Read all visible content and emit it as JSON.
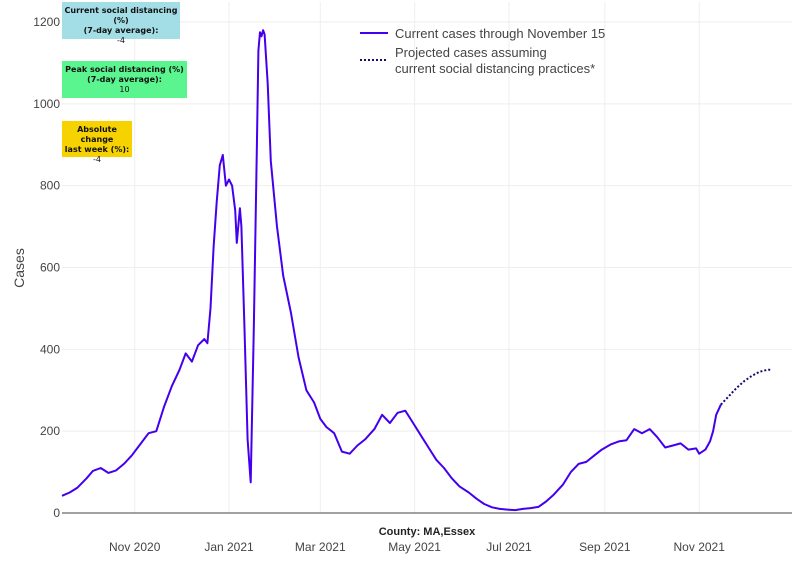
{
  "chart_data": {
    "type": "line",
    "ylabel": "Cases",
    "xlabel_caption": "County: MA,Essex",
    "ylim": [
      0,
      1200
    ],
    "yticks": [
      0,
      200,
      400,
      600,
      800,
      1000,
      1200
    ],
    "y_tick_labels": [
      "0",
      "200",
      "400",
      "600",
      "800",
      "1000",
      "1200"
    ],
    "x_range": [
      "2020-09-15",
      "2021-12-31"
    ],
    "x_ticks": [
      "2020-11-01",
      "2021-01-01",
      "2021-03-01",
      "2021-05-01",
      "2021-07-01",
      "2021-09-01",
      "2021-11-01"
    ],
    "x_tick_labels": [
      "Nov 2020",
      "Jan 2021",
      "Mar 2021",
      "May 2021",
      "Jul 2021",
      "Sep 2021",
      "Nov 2021"
    ],
    "series": [
      {
        "name": "Current cases through November 15",
        "style": "solid",
        "color": "#4400ee",
        "points": [
          [
            "2020-09-15",
            42
          ],
          [
            "2020-09-20",
            50
          ],
          [
            "2020-09-25",
            62
          ],
          [
            "2020-10-01",
            85
          ],
          [
            "2020-10-05",
            103
          ],
          [
            "2020-10-10",
            110
          ],
          [
            "2020-10-15",
            98
          ],
          [
            "2020-10-20",
            104
          ],
          [
            "2020-10-25",
            120
          ],
          [
            "2020-10-30",
            140
          ],
          [
            "2020-11-05",
            170
          ],
          [
            "2020-11-10",
            195
          ],
          [
            "2020-11-15",
            200
          ],
          [
            "2020-11-20",
            260
          ],
          [
            "2020-11-25",
            310
          ],
          [
            "2020-11-30",
            350
          ],
          [
            "2020-12-04",
            390
          ],
          [
            "2020-12-08",
            370
          ],
          [
            "2020-12-12",
            410
          ],
          [
            "2020-12-16",
            425
          ],
          [
            "2020-12-18",
            415
          ],
          [
            "2020-12-20",
            500
          ],
          [
            "2020-12-22",
            650
          ],
          [
            "2020-12-24",
            760
          ],
          [
            "2020-12-26",
            850
          ],
          [
            "2020-12-28",
            875
          ],
          [
            "2020-12-30",
            800
          ],
          [
            "2021-01-01",
            815
          ],
          [
            "2021-01-03",
            800
          ],
          [
            "2021-01-05",
            740
          ],
          [
            "2021-01-06",
            660
          ],
          [
            "2021-01-08",
            745
          ],
          [
            "2021-01-09",
            700
          ],
          [
            "2021-01-11",
            450
          ],
          [
            "2021-01-13",
            180
          ],
          [
            "2021-01-15",
            75
          ],
          [
            "2021-01-17",
            450
          ],
          [
            "2021-01-19",
            900
          ],
          [
            "2021-01-20",
            1130
          ],
          [
            "2021-01-21",
            1175
          ],
          [
            "2021-01-22",
            1165
          ],
          [
            "2021-01-23",
            1180
          ],
          [
            "2021-01-24",
            1170
          ],
          [
            "2021-01-26",
            1050
          ],
          [
            "2021-01-28",
            860
          ],
          [
            "2021-02-01",
            700
          ],
          [
            "2021-02-05",
            580
          ],
          [
            "2021-02-10",
            490
          ],
          [
            "2021-02-15",
            380
          ],
          [
            "2021-02-20",
            300
          ],
          [
            "2021-02-25",
            270
          ],
          [
            "2021-03-01",
            230
          ],
          [
            "2021-03-05",
            210
          ],
          [
            "2021-03-10",
            195
          ],
          [
            "2021-03-15",
            150
          ],
          [
            "2021-03-20",
            145
          ],
          [
            "2021-03-25",
            165
          ],
          [
            "2021-03-30",
            180
          ],
          [
            "2021-04-05",
            205
          ],
          [
            "2021-04-10",
            240
          ],
          [
            "2021-04-15",
            220
          ],
          [
            "2021-04-20",
            245
          ],
          [
            "2021-04-25",
            250
          ],
          [
            "2021-04-30",
            220
          ],
          [
            "2021-05-05",
            190
          ],
          [
            "2021-05-10",
            160
          ],
          [
            "2021-05-15",
            130
          ],
          [
            "2021-05-20",
            110
          ],
          [
            "2021-05-25",
            85
          ],
          [
            "2021-05-30",
            65
          ],
          [
            "2021-06-05",
            50
          ],
          [
            "2021-06-10",
            35
          ],
          [
            "2021-06-15",
            22
          ],
          [
            "2021-06-20",
            14
          ],
          [
            "2021-06-25",
            10
          ],
          [
            "2021-07-01",
            8
          ],
          [
            "2021-07-05",
            7
          ],
          [
            "2021-07-10",
            10
          ],
          [
            "2021-07-15",
            12
          ],
          [
            "2021-07-20",
            15
          ],
          [
            "2021-07-25",
            28
          ],
          [
            "2021-07-30",
            45
          ],
          [
            "2021-08-05",
            70
          ],
          [
            "2021-08-10",
            100
          ],
          [
            "2021-08-15",
            120
          ],
          [
            "2021-08-20",
            125
          ],
          [
            "2021-08-25",
            140
          ],
          [
            "2021-08-30",
            155
          ],
          [
            "2021-09-05",
            168
          ],
          [
            "2021-09-10",
            175
          ],
          [
            "2021-09-15",
            178
          ],
          [
            "2021-09-20",
            205
          ],
          [
            "2021-09-25",
            195
          ],
          [
            "2021-09-30",
            205
          ],
          [
            "2021-10-05",
            185
          ],
          [
            "2021-10-10",
            160
          ],
          [
            "2021-10-15",
            165
          ],
          [
            "2021-10-20",
            170
          ],
          [
            "2021-10-25",
            155
          ],
          [
            "2021-10-30",
            158
          ],
          [
            "2021-11-01",
            145
          ],
          [
            "2021-11-05",
            155
          ],
          [
            "2021-11-08",
            175
          ],
          [
            "2021-11-10",
            200
          ],
          [
            "2021-11-12",
            240
          ],
          [
            "2021-11-15",
            265
          ]
        ]
      },
      {
        "name": "Projected cases assuming current social distancing practices*",
        "name_lines": [
          "Projected cases assuming",
          "current social distancing practices*"
        ],
        "style": "dotted",
        "color": "#1a0a6e",
        "points": [
          [
            "2021-11-15",
            265
          ],
          [
            "2021-11-20",
            285
          ],
          [
            "2021-11-25",
            305
          ],
          [
            "2021-11-30",
            322
          ],
          [
            "2021-12-05",
            335
          ],
          [
            "2021-12-10",
            345
          ],
          [
            "2021-12-15",
            350
          ],
          [
            "2021-12-18",
            350
          ]
        ]
      }
    ]
  },
  "info_boxes": [
    {
      "title": "Current social distancing (%) (7-day average):",
      "title_lines": [
        "Current social distancing (%)",
        "(7-day average):"
      ],
      "value": "-4",
      "color": "#a3dde6"
    },
    {
      "title": "Peak social distancing (%) (7-day average):",
      "title_lines": [
        "Peak social distancing (%)",
        "(7-day average):"
      ],
      "value": "10",
      "color": "#5af58e"
    },
    {
      "title": "Absolute change last week (%):",
      "title_lines": [
        "Absolute change",
        "last week (%):"
      ],
      "value": "-4",
      "color": "#f5d200"
    }
  ]
}
